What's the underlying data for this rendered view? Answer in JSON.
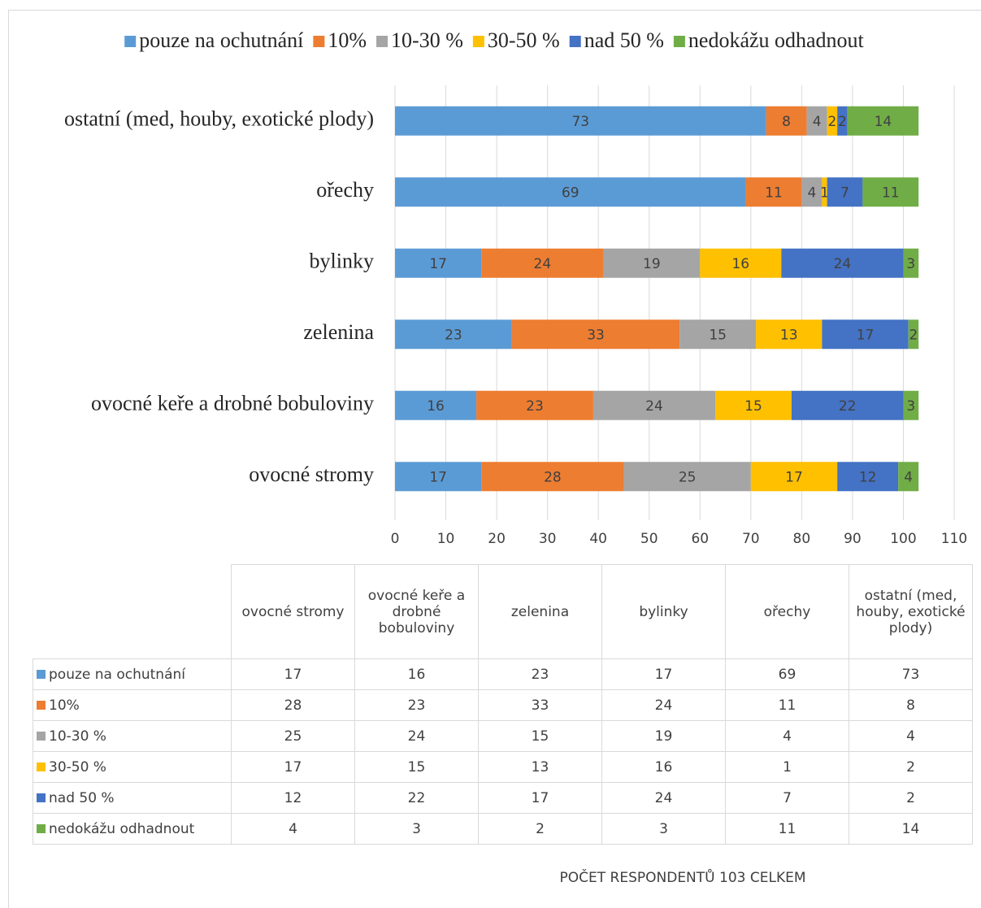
{
  "chart_data": {
    "type": "stacked_bar_horizontal",
    "categories": [
      "ovocné stromy",
      "ovocné keře a drobné bobuloviny",
      "zelenina",
      "bylinky",
      "ořechy",
      "ostatní (med, houby, exotické plody)"
    ],
    "series": [
      {
        "name": "pouze na ochutnání",
        "color": "#5b9bd5",
        "values": [
          17,
          16,
          23,
          17,
          69,
          73
        ]
      },
      {
        "name": "10%",
        "color": "#ed7d31",
        "values": [
          28,
          23,
          33,
          24,
          11,
          8
        ]
      },
      {
        "name": "10-30 %",
        "color": "#a5a5a5",
        "values": [
          25,
          24,
          15,
          19,
          4,
          4
        ]
      },
      {
        "name": "30-50 %",
        "color": "#ffc000",
        "values": [
          17,
          15,
          13,
          16,
          1,
          2
        ]
      },
      {
        "name": "nad 50 %",
        "color": "#4472c4",
        "values": [
          12,
          22,
          17,
          24,
          7,
          2
        ]
      },
      {
        "name": "nedokážu odhadnout",
        "color": "#70ad47",
        "values": [
          4,
          3,
          2,
          3,
          11,
          14
        ]
      }
    ],
    "xlim": [
      0,
      110
    ],
    "xticks": [
      0,
      10,
      20,
      30,
      40,
      50,
      60,
      70,
      80,
      90,
      100,
      110
    ],
    "grid": true,
    "legend": "top",
    "xlabel": "POČET RESPONDENTŮ 103 CELKEM"
  }
}
